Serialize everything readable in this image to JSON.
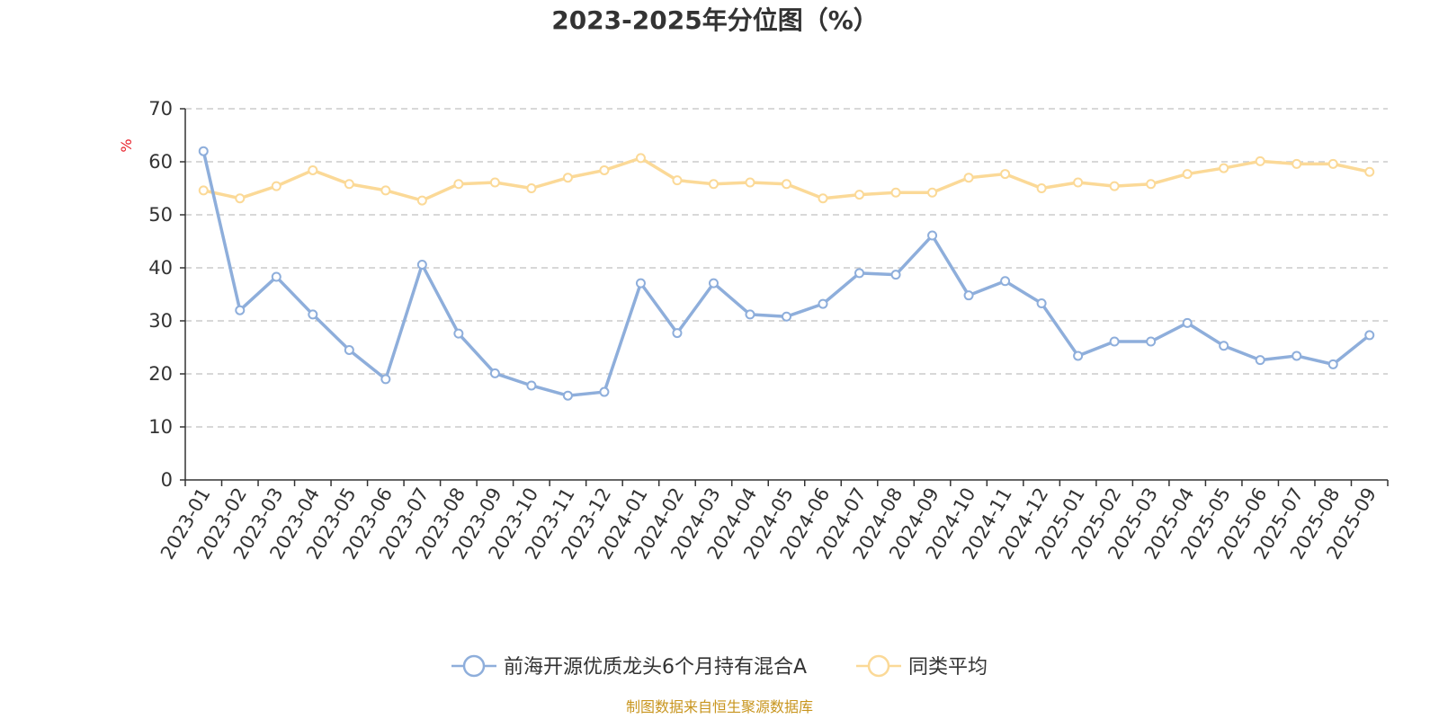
{
  "chart_data": {
    "type": "line",
    "title": "2023-2025年分位图（%）",
    "ylabel": "%",
    "ylim": [
      0,
      70
    ],
    "yticks": [
      0,
      10,
      20,
      30,
      40,
      50,
      60,
      70
    ],
    "grid": true,
    "legend_position": "bottom",
    "categories": [
      "2023-01",
      "2023-02",
      "2023-03",
      "2023-04",
      "2023-05",
      "2023-06",
      "2023-07",
      "2023-08",
      "2023-09",
      "2023-10",
      "2023-11",
      "2023-12",
      "2024-01",
      "2024-02",
      "2024-03",
      "2024-04",
      "2024-05",
      "2024-06",
      "2024-07",
      "2024-08",
      "2024-09",
      "2024-10",
      "2024-11",
      "2024-12",
      "2025-01",
      "2025-02",
      "2025-03",
      "2025-04",
      "2025-05",
      "2025-06",
      "2025-07",
      "2025-08",
      "2025-09"
    ],
    "series": [
      {
        "name": "前海开源优质龙头6个月持有混合A",
        "color": "#8eaedb",
        "values": [
          62.0,
          32.0,
          38.3,
          31.2,
          24.5,
          19.0,
          40.6,
          27.6,
          20.1,
          17.8,
          15.9,
          16.6,
          37.1,
          27.7,
          37.1,
          31.2,
          30.8,
          33.2,
          39.0,
          38.7,
          46.1,
          34.8,
          37.5,
          33.3,
          23.4,
          26.1,
          26.1,
          29.6,
          25.3,
          22.6,
          23.4,
          21.8,
          27.3
        ]
      },
      {
        "name": "同类平均",
        "color": "#fbd997",
        "values": [
          54.6,
          53.1,
          55.4,
          58.4,
          55.8,
          54.6,
          52.7,
          55.8,
          56.1,
          55.0,
          57.0,
          58.4,
          60.7,
          56.5,
          55.8,
          56.1,
          55.8,
          53.1,
          53.8,
          54.2,
          54.2,
          57.0,
          57.7,
          55.0,
          56.1,
          55.4,
          55.8,
          57.7,
          58.8,
          60.1,
          59.6,
          59.6,
          58.1
        ]
      }
    ]
  },
  "source": "制图数据来自恒生聚源数据库"
}
